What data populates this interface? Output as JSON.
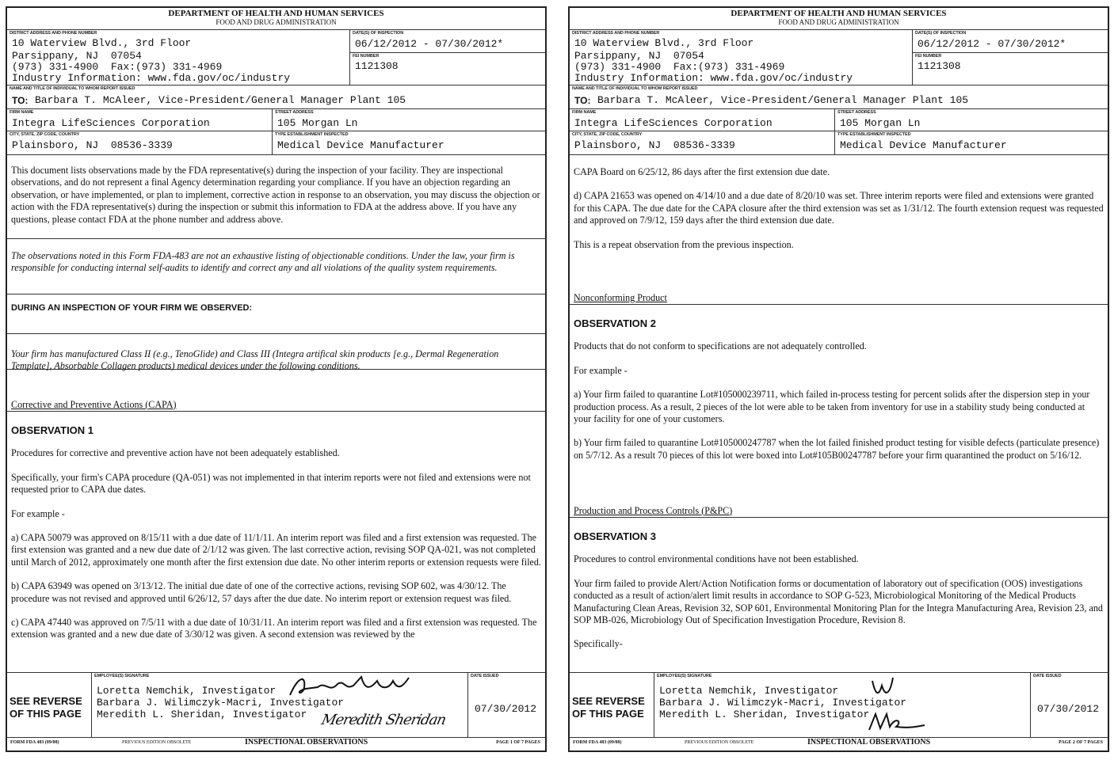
{
  "pages": [
    {
      "header": {
        "dept": "DEPARTMENT OF HEALTH AND HUMAN SERVICES",
        "agency": "FOOD AND DRUG ADMINISTRATION",
        "district_label": "DISTRICT ADDRESS AND PHONE NUMBER",
        "district_lines": [
          "10 Waterview Blvd., 3rd Floor",
          "Parsippany, NJ  07054",
          "(973) 331-4900  Fax:(973) 331-4969",
          "Industry Information: www.fda.gov/oc/industry"
        ],
        "dates_label": "DATE(S) OF INSPECTION",
        "dates": "06/12/2012 - 07/30/2012*",
        "fei_label": "FEI NUMBER",
        "fei": "1121308",
        "to_label": "NAME AND TITLE OF INDIVIDUAL TO WHOM REPORT ISSUED",
        "to_prefix": "TO:",
        "to": "Barbara T. McAleer, Vice-President/General Manager Plant 105",
        "firm_label": "FIRM NAME",
        "firm": "Integra LifeSciences Corporation",
        "street_label": "STREET ADDRESS",
        "street": "105 Morgan Ln",
        "city_label": "CITY, STATE, ZIP CODE, COUNTRY",
        "city": "Plainsboro, NJ  08536-3339",
        "type_label": "TYPE ESTABLISHMENT INSPECTED",
        "type": "Medical Device Manufacturer"
      },
      "boxes": [
        {
          "blocks": [
            {
              "t": "p",
              "text": "This document lists observations made by the FDA representative(s) during the inspection of your facility. They are inspectional observations, and do not represent a final Agency determination regarding your compliance. If you have an objection regarding an observation, or have implemented, or plan to implement, corrective action in response to an observation, you may discuss the objection or action with the FDA representative(s) during the inspection or submit this information to FDA at the address above. If you have any questions, please contact FDA at the phone number and address above."
            }
          ]
        },
        {
          "blocks": [
            {
              "t": "i",
              "text": "The observations noted in this Form FDA-483 are not an exhaustive listing of objectionable conditions. Under the law, your firm is responsible for conducting internal self-audits to identify and correct any and all violations of the quality system requirements."
            }
          ]
        },
        {
          "blocks": [
            {
              "t": "b",
              "text": "DURING AN INSPECTION OF YOUR FIRM WE OBSERVED:"
            }
          ]
        },
        {
          "blocks": [
            {
              "t": "i",
              "text": "Your firm has manufactured Class II (e.g., TenoGlide) and Class III (Integra artifical skin products [e.g., Dermal Regeneration Template], Absorbable Collagen products) medical devices under the following conditions."
            }
          ]
        },
        {
          "blocks": [
            {
              "t": "sec",
              "text": "Corrective and Preventive Actions (CAPA)"
            }
          ]
        },
        {
          "blocks": [
            {
              "t": "obs",
              "text": "OBSERVATION 1"
            },
            {
              "t": "p",
              "text": "Procedures for corrective and preventive action have not been adequately established."
            },
            {
              "t": "p",
              "text": "Specifically, your firm's CAPA procedure (QA-051) was not implemented in that interim reports were not filed and extensions were not requested prior to CAPA due dates."
            },
            {
              "t": "p",
              "text": "For example -"
            },
            {
              "t": "p",
              "text": "a) CAPA 50079 was approved on 8/15/11 with a due date of 11/1/11.  An interim report was filed and a first extension was requested.  The first extension was granted and a new due date of 2/1/12 was given.  The last corrective action, revising SOP QA-021, was not completed until March of 2012, approximately one month after the first extension due date.  No other interim reports or extension requests were filed."
            },
            {
              "t": "p",
              "text": "b) CAPA 63949 was opened on 3/13/12.  The initial due date of one of the corrective actions, revising SOP 602, was 4/30/12. The procedure was not revised and approved until 6/26/12, 57 days after the due date.  No interim report or extension request was filed."
            },
            {
              "t": "p",
              "text": "c) CAPA 47440 was approved on 7/5/11 with a due date of 10/31/11.  An interim report was filed and a first extension was requested.  The extension was granted and a new due date of 3/30/12 was given.  A second extension was reviewed by the"
            }
          ]
        }
      ],
      "signature": {
        "see_reverse": "SEE REVERSE OF THIS PAGE",
        "employees_label": "EMPLOYEE(S) SIGNATURE",
        "employees": [
          "Loretta Nemchik, Investigator",
          "Barbara J. Wilimczyk-Macri, Investigator",
          "Meredith L. Sheridan, Investigator"
        ],
        "handwritten": [
          "Loretta Nemchik",
          "Meredith Sheridan"
        ],
        "date_label": "DATE ISSUED",
        "date": "07/30/2012"
      },
      "footer": {
        "form": "FORM FDA 483 (09/08)",
        "obsolete": "PREVIOUS EDITION OBSOLETE",
        "title": "INSPECTIONAL OBSERVATIONS",
        "page": "PAGE 1 OF 7 PAGES"
      }
    },
    {
      "header": {
        "dept": "DEPARTMENT OF HEALTH AND HUMAN SERVICES",
        "agency": "FOOD AND DRUG ADMINISTRATION",
        "district_label": "DISTRICT ADDRESS AND PHONE NUMBER",
        "district_lines": [
          "10 Waterview Blvd., 3rd Floor",
          "Parsippany, NJ  07054",
          "(973) 331-4900  Fax:(973) 331-4969",
          "Industry Information: www.fda.gov/oc/industry"
        ],
        "dates_label": "DATE(S) OF INSPECTION",
        "dates": "06/12/2012 - 07/30/2012*",
        "fei_label": "FEI NUMBER",
        "fei": "1121308",
        "to_label": "NAME AND TITLE OF INDIVIDUAL TO WHOM REPORT ISSUED",
        "to_prefix": "TO:",
        "to": "Barbara T. McAleer, Vice-President/General Manager Plant 105",
        "firm_label": "FIRM NAME",
        "firm": "Integra LifeSciences Corporation",
        "street_label": "STREET ADDRESS",
        "street": "105 Morgan Ln",
        "city_label": "CITY, STATE, ZIP CODE, COUNTRY",
        "city": "Plainsboro, NJ  08536-3339",
        "type_label": "TYPE ESTABLISHMENT INSPECTED",
        "type": "Medical Device Manufacturer"
      },
      "boxes": [
        {
          "blocks": [
            {
              "t": "p",
              "text": "CAPA Board on 6/25/12, 86 days after the first extension due date."
            },
            {
              "t": "p",
              "text": "d) CAPA 21653 was opened on 4/14/10 and a due date of 8/20/10 was set.  Three interim reports were filed and extensions were granted for this CAPA.  The due date for the CAPA closure after the third extension was set as 1/31/12.  The fourth extension request was requested and approved on 7/9/12, 159 days after the third extension due date."
            },
            {
              "t": "p",
              "text": "This is a repeat observation from the previous inspection."
            },
            {
              "t": "sec",
              "text": "Nonconforming Product"
            }
          ]
        },
        {
          "blocks": [
            {
              "t": "obs",
              "text": "OBSERVATION 2"
            },
            {
              "t": "p",
              "text": "Products that do not conform to specifications are not adequately controlled."
            },
            {
              "t": "p",
              "text": "For example -"
            },
            {
              "t": "p",
              "text": "a)  Your firm failed to quarantine Lot#105000239711, which failed in-process testing for percent solids after the dispersion step in your production process.  As a result, 2 pieces of the lot were able to be taken from inventory for use in a stability study being conducted at your facility for one of your customers."
            },
            {
              "t": "p",
              "text": "b)  Your firm failed to quarantine Lot#105000247787 when the lot failed finished product testing for visible defects (particulate presence) on 5/7/12.  As a result 70 pieces of this lot were boxed into Lot#105B00247787 before your firm quarantined the product on 5/16/12."
            },
            {
              "t": "sec",
              "text": "Production and Process Controls (P&PC)"
            }
          ]
        },
        {
          "blocks": [
            {
              "t": "obs",
              "text": "OBSERVATION 3"
            },
            {
              "t": "p",
              "text": "Procedures to control environmental conditions have not been established."
            },
            {
              "t": "p",
              "text": "Your firm failed to provide Alert/Action Notification forms or documentation of laboratory out of specification (OOS) investigations conducted as a result of action/alert limit results in accordance to SOP G-523, Microbiological Monitoring of the Medical Products Manufacturing Clean Areas, Revision 32, SOP 601, Environmental Monitoring Plan for the Integra Manufacturing Area, Revision 23, and SOP MB-026, Microbiology Out of Specification Investigation Procedure, Revision 8."
            },
            {
              "t": "p",
              "text": "Specifically-"
            }
          ]
        }
      ],
      "signature": {
        "see_reverse": "SEE REVERSE OF THIS PAGE",
        "employees_label": "EMPLOYEE(S) SIGNATURE",
        "employees": [
          "Loretta Nemchik, Investigator",
          "Barbara J. Wilimczyk-Macri, Investigator",
          "Meredith L. Sheridan, Investigator"
        ],
        "handwritten": [
          "LN",
          "MS"
        ],
        "date_label": "DATE ISSUED",
        "date": "07/30/2012"
      },
      "footer": {
        "form": "FORM FDA 483 (09/08)",
        "obsolete": "PREVIOUS EDITION OBSOLETE",
        "title": "INSPECTIONAL OBSERVATIONS",
        "page": "PAGE 2 OF 7 PAGES"
      }
    }
  ]
}
